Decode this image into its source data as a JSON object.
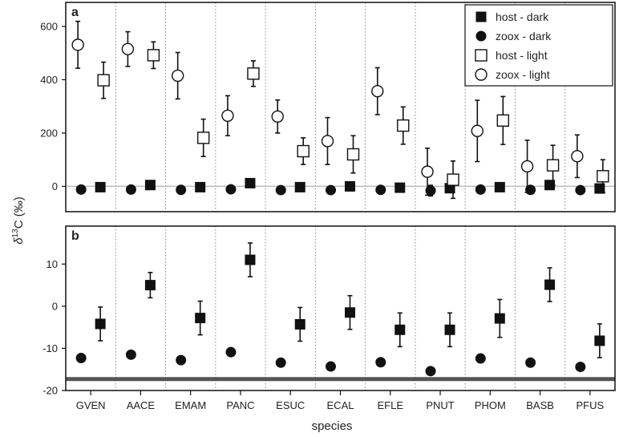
{
  "chart_data": {
    "type": "scatter",
    "shared_x": {
      "label": "species",
      "categories": [
        "GVEN",
        "AACE",
        "EMAM",
        "PANC",
        "ESUC",
        "ECAL",
        "EFLE",
        "PNUT",
        "PHOM",
        "BASB",
        "PFUS"
      ]
    },
    "ylabel_parts": {
      "delta": "δ",
      "sup": "13",
      "rest": "C (‰)"
    },
    "panels": [
      {
        "label": "a",
        "ylim": [
          -95,
          690
        ],
        "yticks": [
          0,
          200,
          400,
          600
        ],
        "zero_line": true,
        "legend": {
          "placement": "top-right",
          "entries": [
            {
              "label": "host - dark",
              "marker": "filled-square"
            },
            {
              "label": "zoox - dark",
              "marker": "filled-circle"
            },
            {
              "label": "host - light",
              "marker": "open-square"
            },
            {
              "label": "zoox - light",
              "marker": "open-circle"
            }
          ]
        },
        "series": [
          {
            "key": "host_dark",
            "marker": "filled-square",
            "values": [
              -3,
              5,
              -3,
              12,
              -3,
              0,
              -5,
              -7,
              -3,
              5,
              -8
            ],
            "err": [
              0,
              0,
              0,
              0,
              0,
              0,
              0,
              0,
              0,
              0,
              0
            ]
          },
          {
            "key": "zoox_dark",
            "marker": "filled-circle",
            "values": [
              -12,
              -12,
              -13,
              -11,
              -14,
              -14,
              -13,
              -16,
              -12,
              -13,
              -14
            ],
            "err": [
              0,
              0,
              0,
              0,
              0,
              0,
              0,
              20,
              0,
              0,
              0
            ]
          },
          {
            "key": "host_light",
            "marker": "open-square",
            "values": [
              398,
              492,
              182,
              423,
              132,
              120,
              228,
              25,
              247,
              79,
              38
            ],
            "err": [
              68,
              50,
              70,
              48,
              50,
              70,
              70,
              70,
              90,
              75,
              62
            ]
          },
          {
            "key": "zoox_light",
            "marker": "open-circle",
            "values": [
              531,
              515,
              415,
              265,
              262,
              170,
              357,
              55,
              208,
              75,
              113
            ],
            "err": [
              88,
              65,
              87,
              75,
              62,
              88,
              88,
              88,
              115,
              98,
              80
            ]
          }
        ]
      },
      {
        "label": "b",
        "ylim": [
          -20,
          19
        ],
        "yticks": [
          -20,
          -10,
          0,
          10
        ],
        "baseline_y": -17.3,
        "series": [
          {
            "key": "host_dark",
            "marker": "filled-square",
            "values": [
              -4.2,
              5.0,
              -2.8,
              11.0,
              -4.3,
              -1.5,
              -5.6,
              -5.6,
              -2.9,
              5.1,
              -8.2
            ],
            "err": [
              4.0,
              3.0,
              4.0,
              4.0,
              4.0,
              4.0,
              4.0,
              4.0,
              4.5,
              4.0,
              4.0
            ]
          },
          {
            "key": "zoox_dark",
            "marker": "filled-circle",
            "values": [
              -12.3,
              -11.5,
              -12.8,
              -10.9,
              -13.4,
              -14.3,
              -13.3,
              -15.4,
              -12.4,
              -13.4,
              -14.4
            ],
            "err": [
              0,
              0,
              0,
              0,
              0,
              0,
              0,
              0,
              0,
              0,
              0
            ]
          }
        ]
      }
    ]
  }
}
